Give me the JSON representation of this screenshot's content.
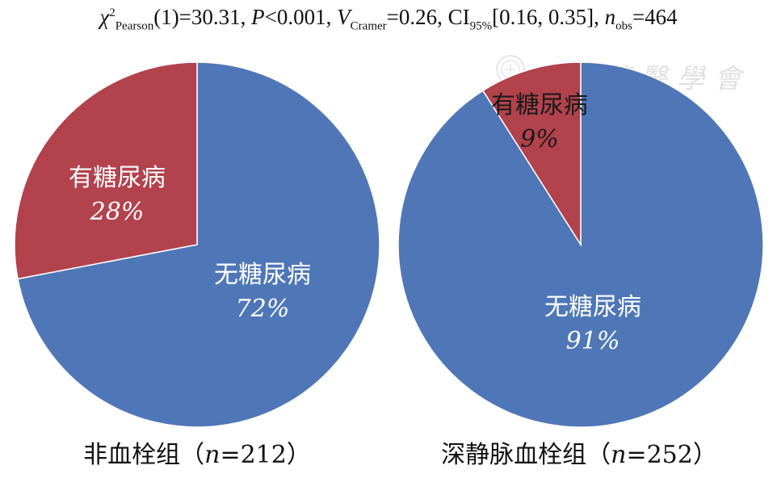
{
  "stats": {
    "chi": "χ",
    "chi_sup": "2",
    "chi_sub": "Pearson",
    "df_and_value": "(1)=30.31, ",
    "p_sym": "P",
    "p_rest": "<0.001, ",
    "v_sym": "V",
    "v_sub": "Cramer",
    "v_rest": "=0.26, ",
    "ci_sym": "CI",
    "ci_sub": "95%",
    "ci_rest": "[0.16, 0.35], ",
    "n_sym": "n",
    "n_sub": "obs",
    "n_rest": "=464"
  },
  "watermark": {
    "text": "中華醫學會"
  },
  "colors": {
    "no_diabetes": "#4F77B7",
    "diabetes": "#B2424C",
    "label_white": "#ffffff",
    "label_dark": "#1a1a1a"
  },
  "chart_data": [
    {
      "type": "pie",
      "caption_prefix": "非血栓组（",
      "caption_n": "n",
      "caption_suffix": "=212）",
      "slices": [
        {
          "label": "无糖尿病",
          "percent_label": "72%",
          "value": 72
        },
        {
          "label": "有糖尿病",
          "percent_label": "28%",
          "value": 28
        }
      ]
    },
    {
      "type": "pie",
      "caption_prefix": "深静脉血栓组（",
      "caption_n": "n",
      "caption_suffix": "=252）",
      "slices": [
        {
          "label": "无糖尿病",
          "percent_label": "91%",
          "value": 91
        },
        {
          "label": "有糖尿病",
          "percent_label": "9%",
          "value": 9
        }
      ]
    }
  ]
}
